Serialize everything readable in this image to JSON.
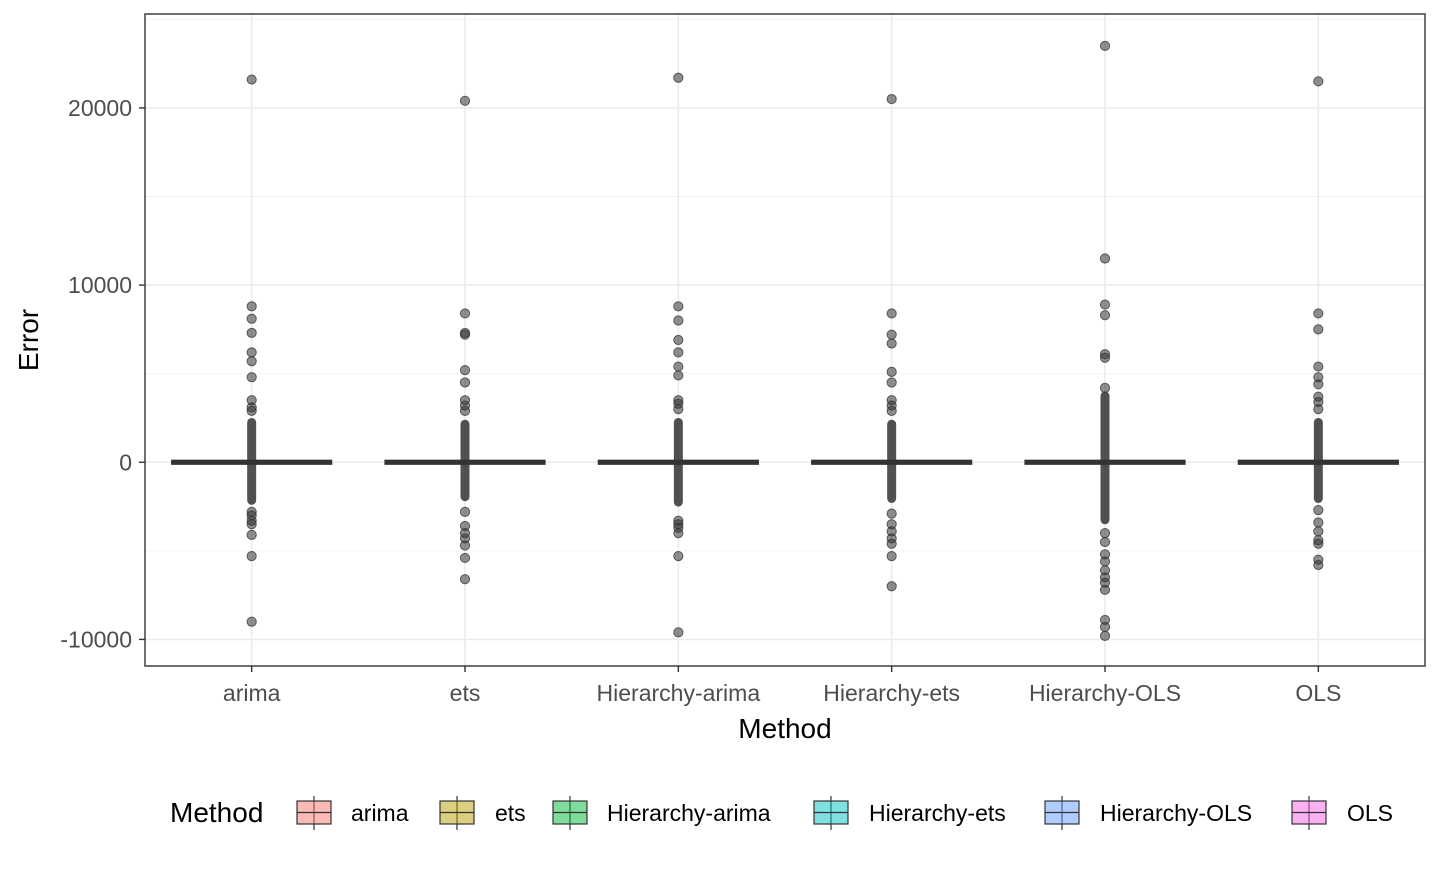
{
  "chart_data": {
    "type": "boxplot",
    "xlabel": "Method",
    "ylabel": "Error",
    "categories": [
      "arima",
      "ets",
      "Hierarchy-arima",
      "Hierarchy-ets",
      "Hierarchy-OLS",
      "OLS"
    ],
    "ylim": [
      -11500,
      25300
    ],
    "yticks": [
      -10000,
      0,
      10000,
      20000
    ],
    "ytick_labels": [
      "-10000",
      "0",
      "10000",
      "20000"
    ],
    "grid": true,
    "legend": {
      "title": "Method",
      "position": "bottom",
      "items": [
        {
          "label": "arima",
          "color": "#f8766d"
        },
        {
          "label": "ets",
          "color": "#b79f00"
        },
        {
          "label": "Hierarchy-arima",
          "color": "#00ba38"
        },
        {
          "label": "Hierarchy-ets",
          "color": "#00bfc4"
        },
        {
          "label": "Hierarchy-OLS",
          "color": "#619cff"
        },
        {
          "label": "OLS",
          "color": "#f564e3"
        }
      ]
    },
    "series": [
      {
        "name": "arima",
        "box": {
          "q1": 0,
          "median": 0,
          "q3": 0,
          "whisker_low": 0,
          "whisker_high": 0
        },
        "dense_outlier_range": [
          -2400,
          2500
        ],
        "outliers": [
          21600,
          8800,
          8100,
          7300,
          6200,
          5700,
          4800,
          3500,
          3100,
          2900,
          -2800,
          -3000,
          -3300,
          -3500,
          -4100,
          -5300,
          -9000
        ]
      },
      {
        "name": "ets",
        "box": {
          "q1": 0,
          "median": 0,
          "q3": 0,
          "whisker_low": 0,
          "whisker_high": 0
        },
        "dense_outlier_range": [
          -2200,
          2400
        ],
        "outliers": [
          20400,
          8400,
          7300,
          7200,
          5200,
          4500,
          3500,
          3200,
          2900,
          -2800,
          -3600,
          -4000,
          -4300,
          -4700,
          -5400,
          -6600
        ]
      },
      {
        "name": "Hierarchy-arima",
        "box": {
          "q1": 0,
          "median": 0,
          "q3": 0,
          "whisker_low": 0,
          "whisker_high": 0
        },
        "dense_outlier_range": [
          -2500,
          2500
        ],
        "outliers": [
          21700,
          8800,
          8000,
          6900,
          6200,
          5400,
          4900,
          3500,
          3300,
          3000,
          -3300,
          -3500,
          -3700,
          -4000,
          -5300,
          -9600
        ]
      },
      {
        "name": "Hierarchy-ets",
        "box": {
          "q1": 0,
          "median": 0,
          "q3": 0,
          "whisker_low": 0,
          "whisker_high": 0
        },
        "dense_outlier_range": [
          -2300,
          2400
        ],
        "outliers": [
          20500,
          8400,
          7200,
          6700,
          5100,
          4500,
          3500,
          3200,
          2900,
          -2900,
          -3500,
          -3900,
          -4300,
          -4600,
          -5300,
          -7000
        ]
      },
      {
        "name": "Hierarchy-OLS",
        "box": {
          "q1": 0,
          "median": 0,
          "q3": 0,
          "whisker_low": 0,
          "whisker_high": 0
        },
        "dense_outlier_range": [
          -3500,
          4000
        ],
        "outliers": [
          23500,
          11500,
          8900,
          8300,
          6100,
          5900,
          4200,
          -4000,
          -4500,
          -5200,
          -5600,
          -6100,
          -6500,
          -6800,
          -7200,
          -8900,
          -9300,
          -9800
        ]
      },
      {
        "name": "OLS",
        "box": {
          "q1": 0,
          "median": 0,
          "q3": 0,
          "whisker_low": 0,
          "whisker_high": 0
        },
        "dense_outlier_range": [
          -2300,
          2500
        ],
        "outliers": [
          21500,
          8400,
          7500,
          5400,
          4800,
          4400,
          3700,
          3400,
          3000,
          -2700,
          -3400,
          -3900,
          -4400,
          -4600,
          -5500,
          -5800
        ]
      }
    ]
  }
}
